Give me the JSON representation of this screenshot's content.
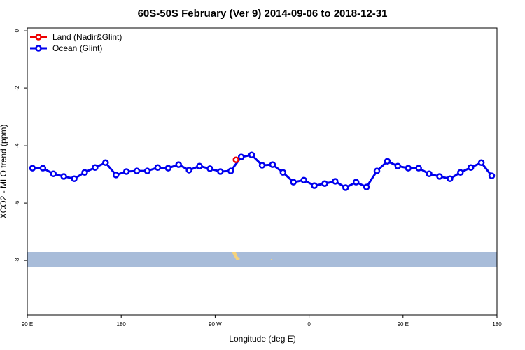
{
  "chart_data": {
    "type": "line",
    "title": "60S-50S February (Ver 9)   2014-09-06 to 2018-12-31",
    "xlabel": "Longitude (deg E)",
    "ylabel": "XCO2 - MLO trend (ppm)",
    "xlim": [
      90,
      540
    ],
    "ylim": [
      -9.9,
      0.1
    ],
    "xticks": [
      {
        "value": 90,
        "label": "90 E"
      },
      180,
      {
        "value": 270,
        "label": "90 W"
      },
      {
        "value": 360,
        "label": "0"
      },
      {
        "value": 450,
        "label": "90 E"
      },
      {
        "value": 540,
        "label": "180"
      }
    ],
    "yticks": [
      0,
      -2,
      -4,
      -6,
      -8
    ],
    "legend": "top-left",
    "series": [
      {
        "name": "Land (Nadir&Glint)",
        "color": "#ee0000",
        "x": [
          290
        ],
        "values": [
          -4.49
        ]
      },
      {
        "name": "Ocean (Glint)",
        "color": "#0000ee",
        "x": [
          95,
          105,
          115,
          125,
          135,
          145,
          155,
          165,
          175,
          185,
          195,
          205,
          215,
          225,
          235,
          245,
          255,
          265,
          275,
          285,
          295,
          305,
          315,
          325,
          335,
          345,
          355,
          365,
          375,
          385,
          395,
          405,
          415,
          425,
          435,
          445,
          455,
          465,
          475,
          485,
          495,
          505,
          515,
          525,
          535
        ],
        "values": [
          -4.78,
          -4.78,
          -4.98,
          -5.07,
          -5.15,
          -4.93,
          -4.76,
          -4.59,
          -5.02,
          -4.9,
          -4.88,
          -4.88,
          -4.76,
          -4.78,
          -4.66,
          -4.85,
          -4.71,
          -4.8,
          -4.9,
          -4.88,
          -4.39,
          -4.32,
          -4.68,
          -4.66,
          -4.93,
          -5.27,
          -5.2,
          -5.39,
          -5.32,
          -5.24,
          -5.46,
          -5.27,
          -5.44,
          -4.88,
          -4.54,
          -4.71,
          -4.78,
          -4.78,
          -4.98,
          -5.07,
          -5.15,
          -4.93,
          -4.76,
          -4.59,
          -5.05
        ]
      }
    ]
  }
}
